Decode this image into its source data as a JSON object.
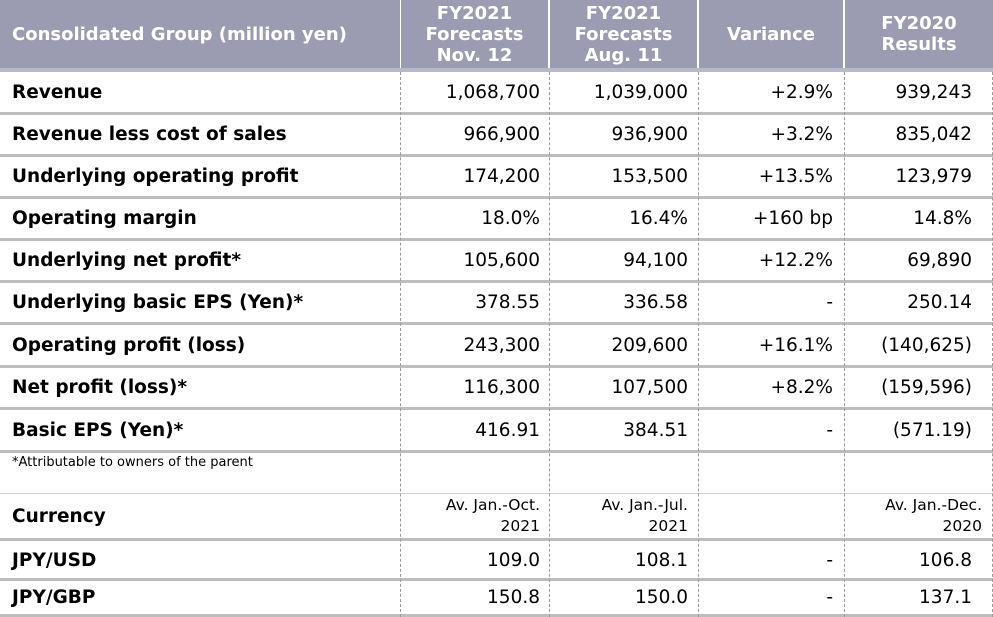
{
  "header": {
    "col0": "Consolidated Group (million yen)",
    "col1": [
      "FY2021",
      "Forecasts",
      "Nov. 12"
    ],
    "col2": [
      "FY2021",
      "Forecasts",
      "Aug. 11"
    ],
    "col3": "Variance",
    "col4": [
      "FY2020",
      "Results"
    ]
  },
  "rows": [
    {
      "label": "Revenue",
      "v1": "1,068,700",
      "v2": "1,039,000",
      "var": "+2.9%",
      "v4": "939,243"
    },
    {
      "label": "Revenue less cost of sales",
      "v1": "966,900",
      "v2": "936,900",
      "var": "+3.2%",
      "v4": "835,042"
    },
    {
      "label": "Underlying operating profit",
      "v1": "174,200",
      "v2": "153,500",
      "var": "+13.5%",
      "v4": "123,979"
    },
    {
      "label": "Operating margin",
      "v1": "18.0%",
      "v2": "16.4%",
      "var": "+160 bp",
      "v4": "14.8%"
    },
    {
      "label": "Underlying net profit*",
      "v1": "105,600",
      "v2": "94,100",
      "var": "+12.2%",
      "v4": "69,890"
    },
    {
      "label": "Underlying basic EPS (Yen)*",
      "v1": "378.55",
      "v2": "336.58",
      "var": "-",
      "v4": "250.14"
    },
    {
      "label": "Operating profit (loss)",
      "v1": "243,300",
      "v2": "209,600",
      "var": "+16.1%",
      "v4": "(140,625)"
    },
    {
      "label": "Net profit (loss)*",
      "v1": "116,300",
      "v2": "107,500",
      "var": "+8.2%",
      "v4": "(159,596)"
    },
    {
      "label": "Basic EPS (Yen)*",
      "v1": "416.91",
      "v2": "384.51",
      "var": "-",
      "v4": "(571.19)"
    }
  ],
  "footnote": "*Attributable to owners of the parent",
  "currency": {
    "label": "Currency",
    "col1": [
      "Av. Jan.-Oct.",
      "2021"
    ],
    "col2": [
      "Av. Jan.-Jul.",
      "2021"
    ],
    "col4": [
      "Av. Jan.-Dec.",
      "2020"
    ],
    "rows": [
      {
        "label": "JPY/USD",
        "v1": "109.0",
        "v2": "108.1",
        "var": "-",
        "v4": "106.8"
      },
      {
        "label": "JPY/GBP",
        "v1": "150.8",
        "v2": "150.0",
        "var": "-",
        "v4": "137.1"
      }
    ]
  },
  "colors": {
    "header_bg": "#9b9bb2",
    "header_text": "#ffffff",
    "separator": "#bdbdbd"
  }
}
